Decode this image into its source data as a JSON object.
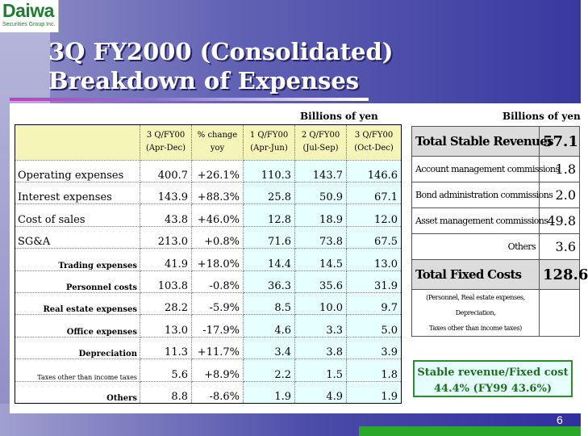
{
  "logo": {
    "name": "Daiwa",
    "sub": "Securities Group Inc."
  },
  "title": {
    "line1": "3Q FY2000 (Consolidated)",
    "line2": "Breakdown of Expenses"
  },
  "unit_left": "Billions of yen",
  "unit_right": "Billions of yen",
  "table": {
    "headers": [
      {
        "l1": "",
        "l2": ""
      },
      {
        "l1": "3 Q/FY00",
        "l2": "(Apr-Dec)"
      },
      {
        "l1": "% change",
        "l2": "yoy"
      },
      {
        "l1": "1 Q/FY00",
        "l2": "(Apr-Jun)"
      },
      {
        "l1": "2 Q/FY00",
        "l2": "(Jul-Sep)"
      },
      {
        "l1": "3 Q/FY00",
        "l2": "(Oct-Dec)"
      }
    ],
    "rows": [
      {
        "label": "Operating expenses",
        "cells": [
          "400.7",
          "+26.1%",
          "110.3",
          "143.7",
          "146.6"
        ]
      },
      {
        "label": "Interest expenses",
        "cells": [
          "143.9",
          "+88.3%",
          "25.8",
          "50.9",
          "67.1"
        ]
      },
      {
        "label": "Cost of sales",
        "cells": [
          "43.8",
          "+46.0%",
          "12.8",
          "18.9",
          "12.0"
        ]
      },
      {
        "label": "SG&A",
        "cells": [
          "213.0",
          "+0.8%",
          "71.6",
          "73.8",
          "67.5"
        ]
      },
      {
        "label": "Trading expenses",
        "cells": [
          "41.9",
          "+18.0%",
          "14.4",
          "14.5",
          "13.0"
        ]
      },
      {
        "label": "Personnel costs",
        "cells": [
          "103.8",
          "-0.8%",
          "36.3",
          "35.6",
          "31.9"
        ]
      },
      {
        "label": "Real estate expenses",
        "cells": [
          "28.2",
          "-5.9%",
          "8.5",
          "10.0",
          "9.7"
        ]
      },
      {
        "label": "Office expenses",
        "cells": [
          "13.0",
          "-17.9%",
          "4.6",
          "3.3",
          "5.0"
        ]
      },
      {
        "label": "Depreciation",
        "cells": [
          "11.3",
          "+11.7%",
          "3.4",
          "3.8",
          "3.9"
        ]
      },
      {
        "label": "Taxes other than income taxes",
        "cells": [
          "5.6",
          "+8.9%",
          "2.2",
          "1.5",
          "1.8"
        ]
      },
      {
        "label": "Others",
        "cells": [
          "8.8",
          "-8.6%",
          "1.9",
          "4.9",
          "1.9"
        ]
      }
    ]
  },
  "side": {
    "total_stable": {
      "label": "Total Stable Revenues",
      "value": "57.1"
    },
    "items": [
      {
        "label": "Account management commissions",
        "value": "1.8"
      },
      {
        "label": "Bond administration commissions",
        "value": "2.0"
      },
      {
        "label": "Asset management commissions",
        "value": "49.8"
      },
      {
        "label": "Others",
        "value": "3.6"
      }
    ],
    "total_fixed": {
      "label": "Total Fixed Costs",
      "value": "128.6"
    },
    "note_l1": "(Personnel, Real estate expenses, Depreciation,",
    "note_l2": "Taxes other than income taxes)"
  },
  "callout": {
    "line1": "Stable revenue/Fixed cost",
    "line2": "44.4%  (FY99 43.6%)"
  },
  "page_number": "6",
  "colors": {
    "brand_green": "#1e7d2e",
    "header_fill": "#f5f5ba",
    "cell_fill": "#e6ffff",
    "title_gradient_end": "#3838a0"
  }
}
